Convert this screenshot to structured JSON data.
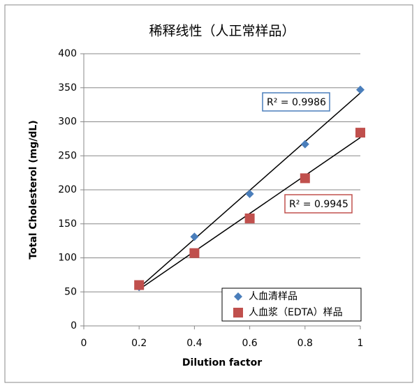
{
  "chart_data": {
    "type": "scatter",
    "title": "稀释线性（人正常样品）",
    "x_label": "Dilution factor",
    "y_label": "Total Cholesterol (mg/dL)",
    "xlim": [
      0,
      1
    ],
    "xticks": [
      0,
      0.2,
      0.4,
      0.6,
      0.8,
      1
    ],
    "ylim": [
      0,
      400
    ],
    "yticks": [
      0,
      50,
      100,
      150,
      200,
      250,
      300,
      350,
      400
    ],
    "grid": true,
    "trendline": "linear",
    "legend": "lower-right",
    "series": [
      {
        "name": "人血清样品",
        "color": "#4a7ebb",
        "marker": "diamond",
        "x": [
          0.2,
          0.4,
          0.6,
          0.8,
          1
        ],
        "values": [
          57,
          131,
          194,
          267,
          347
        ],
        "annotation": "R² = 0.9986"
      },
      {
        "name": "人血浆（EDTA）样品",
        "color": "#c0504d",
        "marker": "square",
        "x": [
          0.2,
          0.4,
          0.6,
          0.8,
          1
        ],
        "values": [
          60,
          107,
          158,
          217,
          284
        ],
        "annotation": "R² = 0.9945"
      }
    ]
  }
}
